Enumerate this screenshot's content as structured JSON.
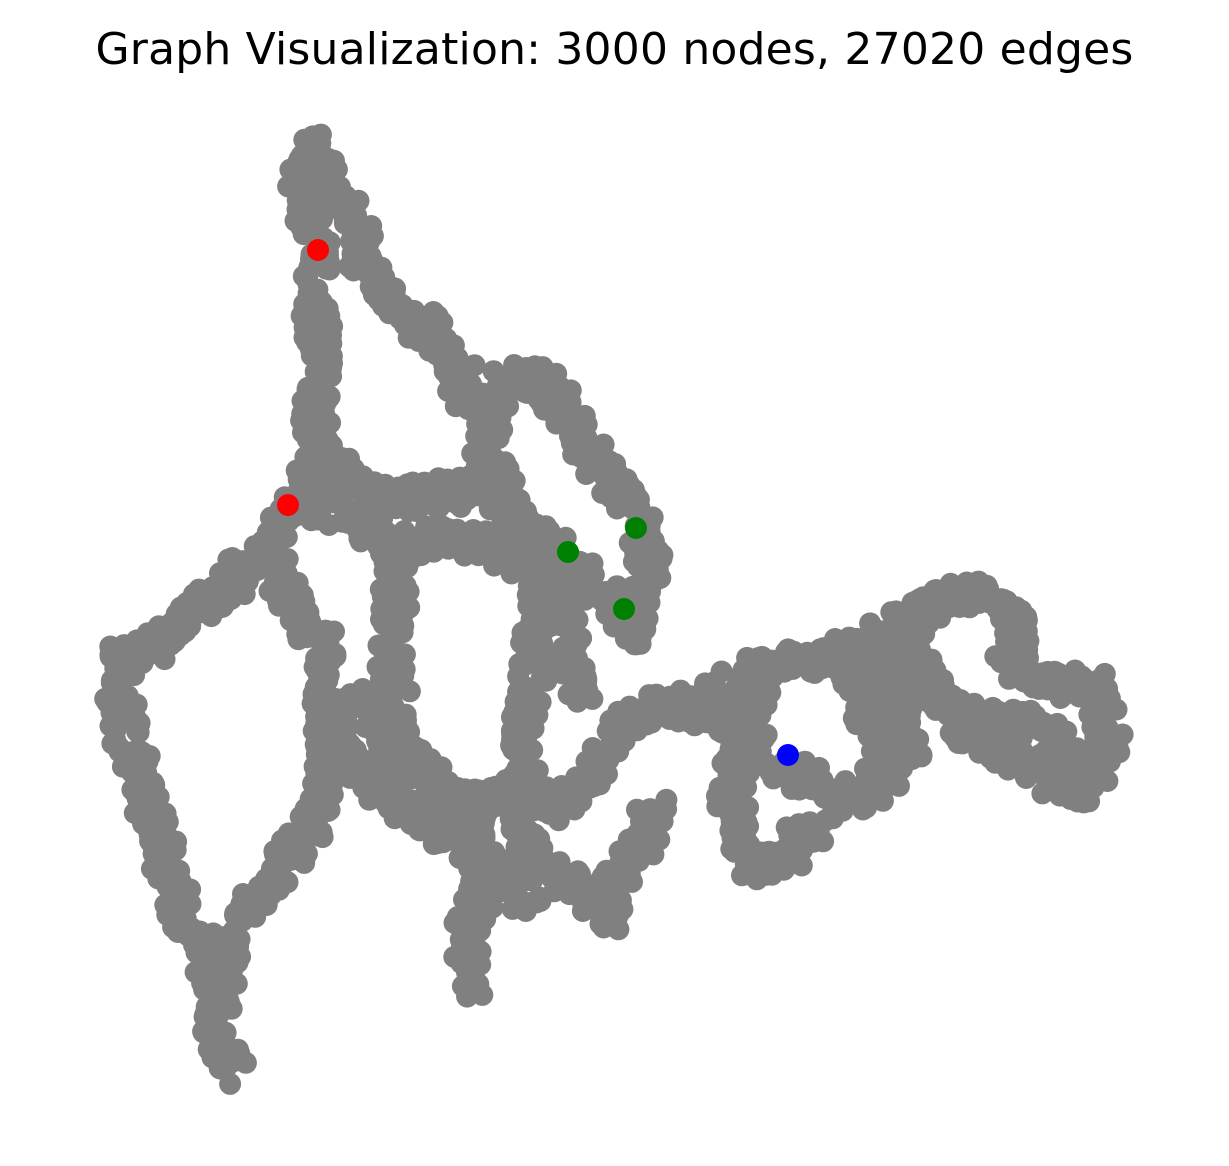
{
  "title": "Graph Visualization: 3000 nodes, 27020 edges",
  "colors": {
    "node": "#808080",
    "edge": "#333333",
    "highlight_red": "#ff0000",
    "highlight_green": "#008000",
    "highlight_blue": "#0000ff",
    "background": "#ffffff"
  }
}
